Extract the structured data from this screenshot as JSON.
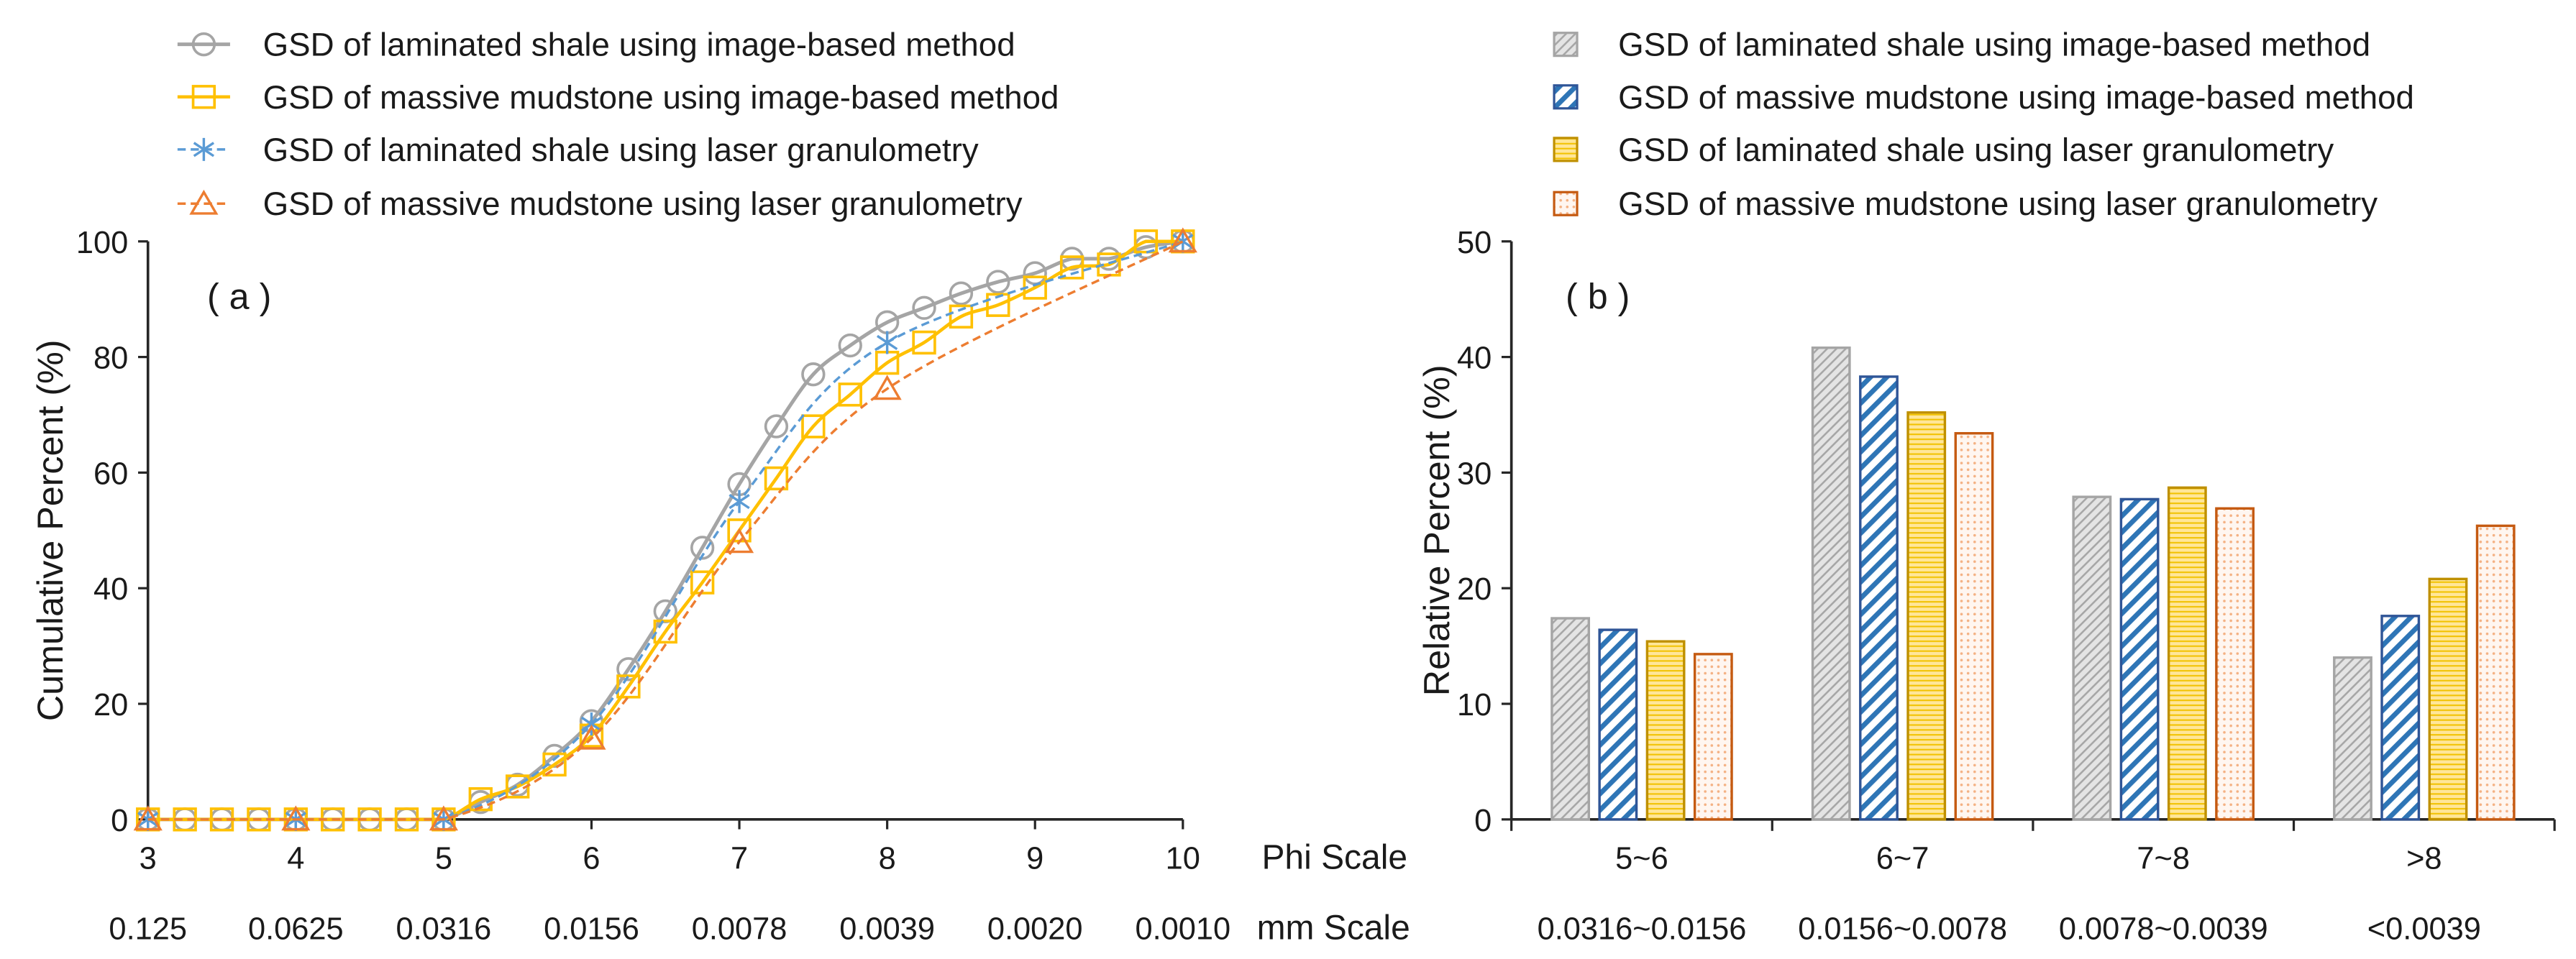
{
  "chart_data": [
    {
      "type": "line",
      "panel_label": "( a )",
      "xlabel": "Phi Scale",
      "secondary_xlabel": "mm Scale",
      "ylabel": "Cumulative Percent (%)",
      "xlim": [
        3,
        10
      ],
      "ylim": [
        0,
        100
      ],
      "x_ticks": [
        3,
        4,
        5,
        6,
        7,
        8,
        9,
        10
      ],
      "mm_ticks": [
        "0.125",
        "0.0625",
        "0.0316",
        "0.0156",
        "0.0078",
        "0.0039",
        "0.0020",
        "0.0010"
      ],
      "y_ticks": [
        0,
        20,
        40,
        60,
        80,
        100
      ],
      "legend_position": "top",
      "grid": false,
      "series": [
        {
          "name": "GSD of laminated shale using image-based method",
          "color": "#A5A5A5",
          "marker": "circle",
          "line_style": "solid",
          "x": [
            3,
            3.25,
            3.5,
            3.75,
            4,
            4.25,
            4.5,
            4.75,
            5,
            5.25,
            5.5,
            5.75,
            6,
            6.25,
            6.5,
            6.75,
            7,
            7.25,
            7.5,
            7.75,
            8,
            8.25,
            8.5,
            8.75,
            9,
            9.25,
            9.5,
            9.75,
            10
          ],
          "y": [
            0,
            0,
            0,
            0,
            0,
            0,
            0,
            0,
            0,
            3,
            6,
            11,
            17,
            26,
            36,
            47,
            58,
            68,
            77,
            82,
            86,
            88.5,
            91,
            93,
            94.5,
            97,
            97,
            99,
            100
          ]
        },
        {
          "name": "GSD of massive mudstone using image-based method",
          "color": "#FFC000",
          "marker": "square",
          "line_style": "solid",
          "x": [
            3,
            3.25,
            3.5,
            3.75,
            4,
            4.25,
            4.5,
            4.75,
            5,
            5.25,
            5.5,
            5.75,
            6,
            6.25,
            6.5,
            6.75,
            7,
            7.25,
            7.5,
            7.75,
            8,
            8.25,
            8.5,
            8.75,
            9,
            9.25,
            9.5,
            9.75,
            10
          ],
          "y": [
            0,
            0,
            0,
            0,
            0,
            0,
            0,
            0,
            0,
            3.5,
            5.7,
            9.5,
            14.5,
            23,
            32.5,
            41,
            50,
            59,
            68,
            73.5,
            79,
            82.5,
            87,
            89,
            92,
            95.5,
            96,
            100,
            100
          ]
        },
        {
          "name": "GSD of laminated shale using laser granulometry",
          "color": "#5B9BD5",
          "marker": "asterisk",
          "line_style": "dashed",
          "x": [
            3,
            4,
            5,
            6,
            7,
            8,
            10
          ],
          "y": [
            0,
            0,
            0,
            16.5,
            55,
            82.5,
            100
          ]
        },
        {
          "name": "GSD of massive mudstone using laser granulometry",
          "color": "#ED7D31",
          "marker": "triangle",
          "line_style": "dashed",
          "x": [
            3,
            4,
            5,
            6,
            7,
            8,
            10
          ],
          "y": [
            0,
            0,
            0,
            14,
            48,
            74.5,
            100
          ]
        }
      ]
    },
    {
      "type": "bar",
      "panel_label": "( b )",
      "ylabel": "Relative Percent (%)",
      "categories": [
        "5~6",
        "6~7",
        "7~8",
        ">8"
      ],
      "mm_categories": [
        "0.0316~0.0156",
        "0.0156~0.0078",
        "0.0078~0.0039",
        "<0.0039"
      ],
      "ylim": [
        0,
        50
      ],
      "y_ticks": [
        0,
        10,
        20,
        30,
        40,
        50
      ],
      "legend_position": "top",
      "grid": false,
      "series": [
        {
          "name": "GSD of laminated shale using image-based method",
          "values": [
            17.4,
            40.8,
            27.9,
            14.0
          ],
          "fill": "#E4E4E4",
          "pattern": "diagonal-fine",
          "pattern_color": "#A5A5A5",
          "border_color": "#A5A5A5"
        },
        {
          "name": "GSD of massive mudstone using image-based method",
          "values": [
            16.4,
            38.3,
            27.7,
            17.6
          ],
          "fill": "#FFFFFF",
          "pattern": "diagonal-wide",
          "pattern_color": "#2E75B6",
          "border_color": "#2F5597"
        },
        {
          "name": "GSD of laminated shale using laser granulometry",
          "values": [
            15.4,
            35.2,
            28.7,
            20.8
          ],
          "fill": "#FFE699",
          "pattern": "horizontal",
          "pattern_color": "#F2C200",
          "border_color": "#BF9000"
        },
        {
          "name": "GSD of massive mudstone using laser granulometry",
          "values": [
            14.3,
            33.4,
            26.9,
            25.4
          ],
          "fill": "#FFF6F0",
          "pattern": "dots",
          "pattern_color": "#F4B183",
          "border_color": "#C55A11"
        }
      ]
    }
  ]
}
